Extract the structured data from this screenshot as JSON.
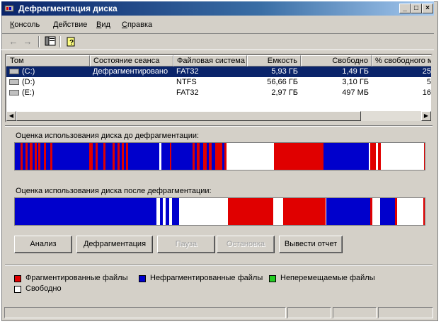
{
  "window": {
    "title": "Дефрагментация диска",
    "min_label": "_",
    "max_label": "□",
    "close_label": "×"
  },
  "menu": [
    {
      "label": "Консоль",
      "accel": "К",
      "rest": "онсоль"
    },
    {
      "label": "Действие",
      "accel": "Д",
      "rest": "ействие"
    },
    {
      "label": "Вид",
      "accel": "В",
      "rest": "ид"
    },
    {
      "label": "Справка",
      "accel": "С",
      "rest": "правка"
    }
  ],
  "toolbar": {
    "back_icon": "arrow-left-icon",
    "forward_icon": "arrow-right-icon",
    "console_icon": "console-tree-icon",
    "help_icon": "help-icon"
  },
  "volumes": {
    "columns": [
      "Том",
      "Состояние сеанса",
      "Файловая система",
      "Емкость",
      "Свободно",
      "% свободного места"
    ],
    "rows": [
      {
        "volume": "(C:)",
        "status": "Дефрагментировано",
        "fs": "FAT32",
        "capacity": "5,93 ГБ",
        "free": "1,49 ГБ",
        "pct": "25",
        "selected": true
      },
      {
        "volume": "(D:)",
        "status": "",
        "fs": "NTFS",
        "capacity": "56,66 ГБ",
        "free": "3,10 ГБ",
        "pct": "5",
        "selected": false
      },
      {
        "volume": "(E:)",
        "status": "",
        "fs": "FAT32",
        "capacity": "2,97 ГБ",
        "free": "497 МБ",
        "pct": "16",
        "selected": false
      }
    ]
  },
  "analysis": {
    "before_label": "Оценка использования диска до дефрагментации:",
    "after_label": "Оценка использования диска после дефрагментации:"
  },
  "buttons": {
    "analyze": "Анализ",
    "defrag": "Дефрагментация",
    "pause": "Пауза",
    "stop": "Остановка",
    "report": "Вывести отчет"
  },
  "legend": {
    "fragmented": "Фрагментированные файлы",
    "contiguous": "Нефрагментированные файлы",
    "unmovable": "Неперемещаемые файлы",
    "free": "Свободно"
  },
  "colors": {
    "fragmented": "#e00000",
    "contiguous": "#0000cc",
    "unmovable": "#22cc22",
    "free": "#ffffff",
    "selection": "#0a246a"
  }
}
